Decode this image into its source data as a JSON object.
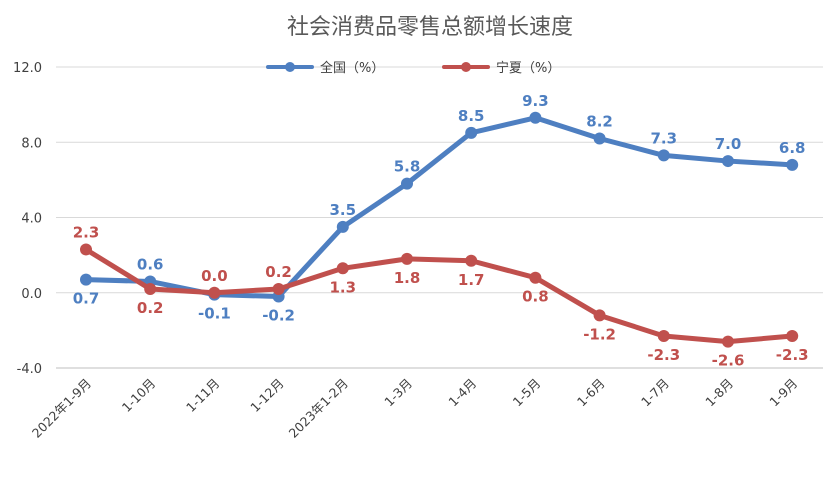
{
  "chart_data": {
    "type": "line",
    "title": "社会消费品零售总额增长速度",
    "xlabel": "",
    "ylabel": "",
    "categories": [
      "2022年1-9月",
      "1-10月",
      "1-11月",
      "1-12月",
      "2023年1-2月",
      "1-3月",
      "1-4月",
      "1-5月",
      "1-6月",
      "1-7月",
      "1-8月",
      "1-9月"
    ],
    "y_ticks": [
      "12.0",
      "8.0",
      "4.0",
      "0.0",
      "-4.0"
    ],
    "ylim": [
      -4.0,
      12.0
    ],
    "grid": true,
    "legend_position": "top",
    "series": [
      {
        "name": "全国（%）",
        "color": "#4e7fc1",
        "values": [
          0.7,
          0.6,
          -0.1,
          -0.2,
          3.5,
          5.8,
          8.5,
          9.3,
          8.2,
          7.3,
          7.0,
          6.8
        ],
        "labels": [
          "0.7",
          "0.6",
          "-0.1",
          "-0.2",
          "3.5",
          "5.8",
          "8.5",
          "9.3",
          "8.2",
          "7.3",
          "7.0",
          "6.8"
        ]
      },
      {
        "name": "宁夏（%）",
        "color": "#c0504d",
        "values": [
          2.3,
          0.2,
          0.0,
          0.2,
          1.3,
          1.8,
          1.7,
          0.8,
          -1.2,
          -2.3,
          -2.6,
          -2.3
        ],
        "labels": [
          "2.3",
          "0.2",
          "0.0",
          "0.2",
          "1.3",
          "1.8",
          "1.7",
          "0.8",
          "-1.2",
          "-2.3",
          "-2.6",
          "-2.3"
        ]
      }
    ]
  }
}
